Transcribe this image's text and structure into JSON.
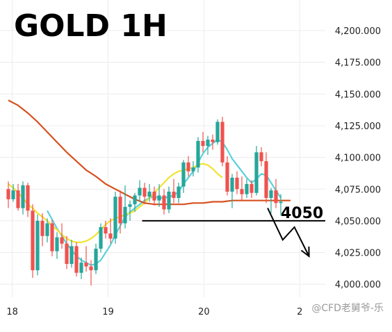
{
  "chart_data": {
    "type": "candlestick",
    "title": "GOLD 1H",
    "y_ticks": [
      "4,200.000",
      "4,175.000",
      "4,150.000",
      "4,125.000",
      "4,100.000",
      "4,075.000",
      "4,050.000",
      "4,025.000",
      "4,000.000"
    ],
    "y_tick_values": [
      4200,
      4175,
      4150,
      4125,
      4100,
      4075,
      4050,
      4025,
      4000
    ],
    "ylim": [
      3993,
      4222
    ],
    "x_ticks": [
      "18",
      "19",
      "20",
      "2"
    ],
    "x_tick_positions": [
      0.8,
      20.5,
      40.2,
      59.9
    ],
    "grid": true,
    "colors": {
      "up": "#26a69a",
      "down": "#ef5350",
      "sma_fast": "#5ad1dc",
      "sma_mid": "#f2e233",
      "sma_slow": "#d6501e",
      "level": "#000000"
    },
    "candles": [
      [
        4075,
        4081,
        4060,
        4067
      ],
      [
        4067,
        4079,
        4065,
        4074
      ],
      [
        4074,
        4079,
        4058,
        4060
      ],
      [
        4060,
        4081,
        4055,
        4078
      ],
      [
        4078,
        4080,
        4053,
        4058
      ],
      [
        4058,
        4063,
        4005,
        4011
      ],
      [
        4011,
        4055,
        4007,
        4050
      ],
      [
        4050,
        4056,
        4030,
        4038
      ],
      [
        4038,
        4052,
        4033,
        4048
      ],
      [
        4048,
        4051,
        4022,
        4026
      ],
      [
        4026,
        4041,
        4020,
        4037
      ],
      [
        4037,
        4048,
        4028,
        4032
      ],
      [
        4032,
        4038,
        4012,
        4016
      ],
      [
        4016,
        4035,
        4013,
        4030
      ],
      [
        4030,
        4033,
        4006,
        4009
      ],
      [
        4009,
        4021,
        4004,
        4017
      ],
      [
        4017,
        4030,
        4010,
        4014
      ],
      [
        4014,
        4019,
        3999,
        4011
      ],
      [
        4011,
        4032,
        4008,
        4028
      ],
      [
        4028,
        4048,
        4025,
        4045
      ],
      [
        4045,
        4050,
        4036,
        4040
      ],
      [
        4040,
        4052,
        4032,
        4036
      ],
      [
        4036,
        4073,
        4032,
        4069
      ],
      [
        4069,
        4074,
        4040,
        4048
      ],
      [
        4048,
        4078,
        4044,
        4061
      ],
      [
        4061,
        4066,
        4050,
        4063
      ],
      [
        4063,
        4072,
        4057,
        4070
      ],
      [
        4070,
        4082,
        4065,
        4076
      ],
      [
        4076,
        4080,
        4063,
        4069
      ],
      [
        4069,
        4079,
        4065,
        4073
      ],
      [
        4073,
        4077,
        4062,
        4066
      ],
      [
        4066,
        4079,
        4061,
        4070
      ],
      [
        4070,
        4075,
        4055,
        4059
      ],
      [
        4059,
        4077,
        4056,
        4073
      ],
      [
        4073,
        4083,
        4064,
        4068
      ],
      [
        4068,
        4080,
        4064,
        4077
      ],
      [
        4077,
        4098,
        4072,
        4096
      ],
      [
        4096,
        4101,
        4085,
        4089
      ],
      [
        4089,
        4097,
        4085,
        4092
      ],
      [
        4092,
        4116,
        4088,
        4113
      ],
      [
        4113,
        4120,
        4104,
        4109
      ],
      [
        4109,
        4117,
        4102,
        4114
      ],
      [
        4114,
        4118,
        4106,
        4112
      ],
      [
        4112,
        4130,
        4110,
        4128
      ],
      [
        4128,
        4132,
        4093,
        4096
      ],
      [
        4096,
        4101,
        4070,
        4073
      ],
      [
        4073,
        4087,
        4060,
        4084
      ],
      [
        4084,
        4089,
        4071,
        4075
      ],
      [
        4075,
        4085,
        4066,
        4071
      ],
      [
        4071,
        4083,
        4068,
        4079
      ],
      [
        4079,
        4082,
        4068,
        4072
      ],
      [
        4072,
        4109,
        4070,
        4104
      ],
      [
        4104,
        4108,
        4093,
        4097
      ],
      [
        4097,
        4104,
        4064,
        4068
      ],
      [
        4068,
        4076,
        4056,
        4074
      ],
      [
        4074,
        4083,
        4060,
        4064
      ],
      [
        4064,
        4071,
        4054,
        4065
      ]
    ],
    "series": [
      {
        "values": [
          null,
          null,
          null,
          null,
          null,
          null,
          null,
          null,
          4058,
          4051,
          4044,
          4038,
          4032,
          4027,
          4022,
          4019,
          4017,
          4015,
          4016,
          4019,
          4025,
          4031,
          4039,
          4046,
          4053,
          4057,
          4060,
          4063,
          4066,
          4068,
          4069,
          4068,
          4068,
          4069,
          4070,
          4073,
          4079,
          4084,
          4089,
          4096,
          4103,
          4108,
          4111,
          4114,
          4112,
          4106,
          4099,
          4094,
          4089,
          4084,
          4080,
          4083,
          4087,
          4086,
          4080,
          4074,
          4068
        ]
      },
      {
        "values": [
          4079,
          4076,
          4072,
          4068,
          4063,
          4060,
          4056,
          4053,
          4050,
          4046,
          4043,
          4039,
          4036,
          4034,
          4033,
          4033,
          4034,
          4036,
          4039,
          4043,
          4047,
          4050,
          4052,
          4053,
          4055,
          4056,
          4058,
          4061,
          4064,
          4068,
          4072,
          4076,
          4080,
          4084,
          4087,
          4089,
          4090,
          4091,
          4092,
          4094,
          4095,
          4094,
          4091,
          4087,
          4084
        ]
      },
      {
        "values": [
          4145,
          4141,
          4135,
          4128,
          4120,
          4112,
          4104,
          4097,
          4090,
          4085,
          4079,
          4075,
          4071,
          4067,
          4064,
          4063,
          4063,
          4063,
          4063,
          4064,
          4064,
          4065,
          4065,
          4066,
          4066,
          4066,
          4066,
          4066,
          4066,
          4066
        ]
      }
    ],
    "series_x_step": [
      1,
      1,
      2
    ],
    "level": {
      "value": 4050,
      "label": "4050",
      "x_start": 27.5
    },
    "arrow": [
      [
        53.3,
        4060
      ],
      [
        56.4,
        4035
      ],
      [
        58.8,
        4045
      ],
      [
        61.8,
        4022
      ]
    ],
    "watermark": "@CFD老舅爷-乐"
  }
}
